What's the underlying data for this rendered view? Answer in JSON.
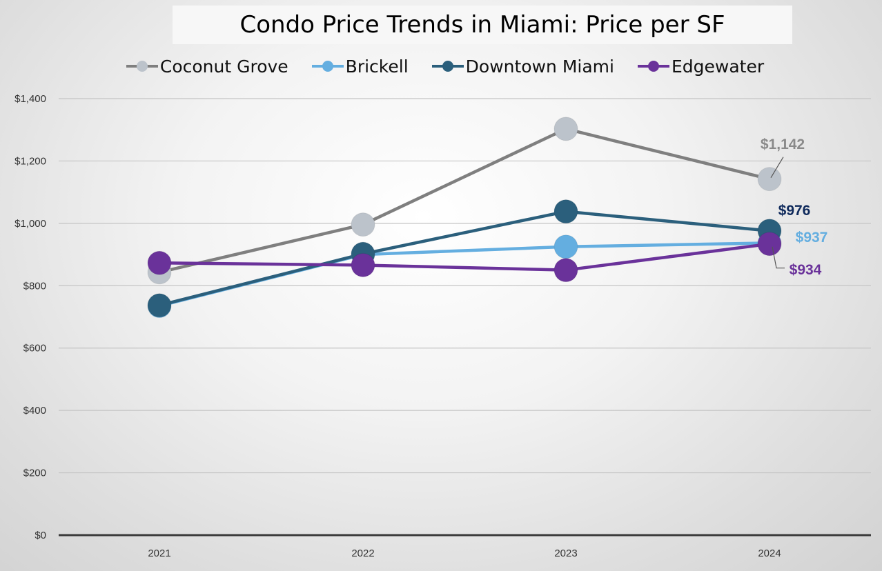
{
  "chart_data": {
    "type": "line",
    "title": "Condo Price Trends in Miami: Price per SF",
    "xlabel": "",
    "ylabel": "",
    "categories": [
      "2021",
      "2022",
      "2023",
      "2024"
    ],
    "ylim": [
      0,
      1400
    ],
    "y_ticks": [
      0,
      200,
      400,
      600,
      800,
      1000,
      1200,
      1400
    ],
    "y_tick_labels": [
      "$0",
      "$200",
      "$400",
      "$600",
      "$800",
      "$1,000",
      "$1,200",
      "$1,400"
    ],
    "grid": true,
    "legend_position": "top",
    "series": [
      {
        "name": "Coconut Grove",
        "line_color": "#7f7f7f",
        "marker_color": "#bcc3cb",
        "values": [
          843,
          996,
          1303,
          1142
        ],
        "end_label": "$1,142",
        "label_color": "#8a8a8a"
      },
      {
        "name": "Brickell",
        "line_color": "#64aee0",
        "marker_color": "#64aee0",
        "values": [
          735,
          900,
          925,
          937
        ],
        "end_label": "$937",
        "label_color": "#64aee0"
      },
      {
        "name": "Downtown Miami",
        "line_color": "#2b5f7c",
        "marker_color": "#2b5f7c",
        "values": [
          737,
          902,
          1038,
          976
        ],
        "end_label": "$976",
        "label_color": "#0f2a5c"
      },
      {
        "name": "Edgewater",
        "line_color": "#6a329a",
        "marker_color": "#6a329a",
        "values": [
          873,
          866,
          850,
          934
        ],
        "end_label": "$934",
        "label_color": "#6a329a"
      }
    ]
  }
}
